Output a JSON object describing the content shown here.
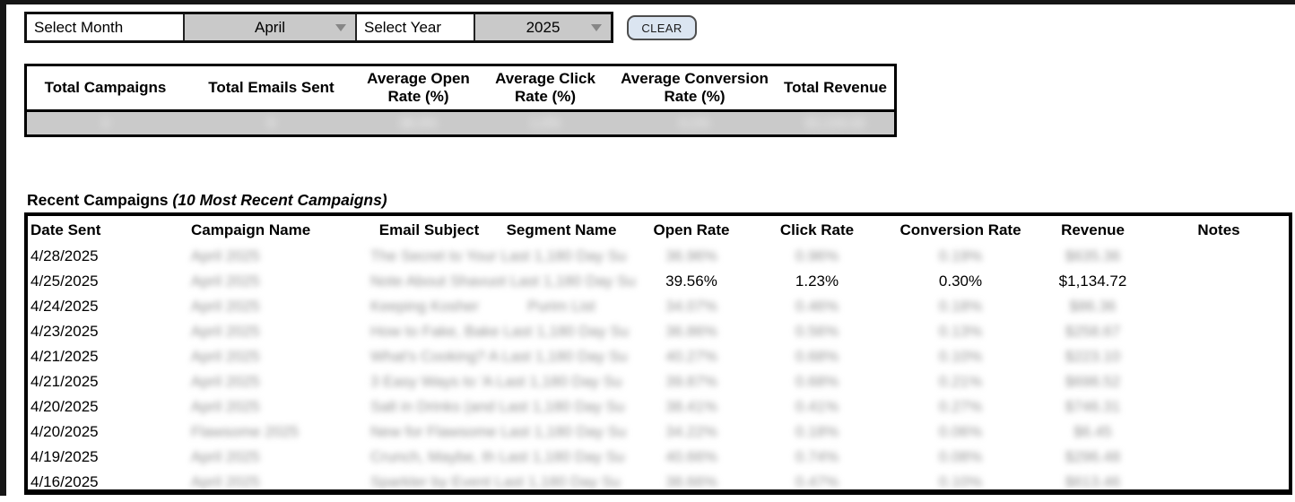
{
  "filters": {
    "month_label": "Select Month",
    "month_value": "April",
    "year_label": "Select Year",
    "year_value": "2025",
    "clear_button": "CLEAR"
  },
  "summary": {
    "headers": [
      "Total Campaigns",
      "Total Emails Sent",
      "Average Open Rate (%)",
      "Average Click Rate (%)",
      "Average Conversion Rate (%)",
      "Total Revenue"
    ],
    "row_redacted": true,
    "row": {
      "total_campaigns": "3",
      "total_emails_sent": "8",
      "avg_open_rate": "38.3%",
      "avg_click_rate": "1.2%",
      "avg_conversion_rate": "0.1%",
      "total_revenue": "$1,134.42"
    }
  },
  "recent": {
    "title": "Recent Campaigns",
    "subtitle": "(10 Most Recent Campaigns)",
    "headers": [
      "Date Sent",
      "Campaign Name",
      "Email Subject",
      "Segment Name",
      "Open Rate",
      "Click Rate",
      "Conversion Rate",
      "Revenue",
      "Notes"
    ],
    "rows": [
      {
        "date": "4/28/2025",
        "campaign": "April 2025",
        "subject": "The Secret to Your Last 1,180 Day Su",
        "segment": "",
        "open": "36.96%",
        "click": "0.96%",
        "conversion": "0.19%",
        "revenue": "$635.36",
        "notes": "",
        "redacted": true
      },
      {
        "date": "4/25/2025",
        "campaign": "April 2025",
        "subject": "Note About Shavuot Last 1,180 Day Su",
        "segment": "",
        "open": "39.56%",
        "click": "1.23%",
        "conversion": "0.30%",
        "revenue": "$1,134.72",
        "notes": "",
        "redacted": false
      },
      {
        "date": "4/24/2025",
        "campaign": "April 2025",
        "subject": "Keeping Kosher",
        "segment": "Purim List",
        "open": "34.07%",
        "click": "0.46%",
        "conversion": "0.18%",
        "revenue": "$86.36",
        "notes": "",
        "redacted": true
      },
      {
        "date": "4/23/2025",
        "campaign": "April 2025",
        "subject": "How to Fake, Bake Last 1,180 Day Su",
        "segment": "",
        "open": "36.86%",
        "click": "0.56%",
        "conversion": "0.13%",
        "revenue": "$258.67",
        "notes": "",
        "redacted": true
      },
      {
        "date": "4/21/2025",
        "campaign": "April 2025",
        "subject": "What's Cooking? A Last 1,180 Day Su",
        "segment": "",
        "open": "40.27%",
        "click": "0.68%",
        "conversion": "0.10%",
        "revenue": "$223.10",
        "notes": "",
        "redacted": true
      },
      {
        "date": "4/21/2025",
        "campaign": "April 2025",
        "subject": "3 Easy Ways to 'A Last 1,180 Day Su",
        "segment": "",
        "open": "39.87%",
        "click": "0.68%",
        "conversion": "0.21%",
        "revenue": "$698.52",
        "notes": "",
        "redacted": true
      },
      {
        "date": "4/20/2025",
        "campaign": "April 2025",
        "subject": "Salt in Drinks (and Last 1,180 Day Su",
        "segment": "",
        "open": "38.41%",
        "click": "0.41%",
        "conversion": "0.27%",
        "revenue": "$746.31",
        "notes": "",
        "redacted": true
      },
      {
        "date": "4/20/2025",
        "campaign": "Flawsome 2025",
        "subject": "New for Flawsome Last 1,180 Day Su",
        "segment": "",
        "open": "34.22%",
        "click": "0.18%",
        "conversion": "0.06%",
        "revenue": "$6.45",
        "notes": "",
        "redacted": true
      },
      {
        "date": "4/19/2025",
        "campaign": "April 2025",
        "subject": "Crunch, Maybe, th Last 1,180 Day Su",
        "segment": "",
        "open": "40.66%",
        "click": "0.74%",
        "conversion": "0.08%",
        "revenue": "$296.48",
        "notes": "",
        "redacted": true
      },
      {
        "date": "4/16/2025",
        "campaign": "April 2025",
        "subject": "Sparkler by Event Last 1,180 Day Su",
        "segment": "",
        "open": "38.66%",
        "click": "0.47%",
        "conversion": "0.10%",
        "revenue": "$613.46",
        "notes": "",
        "redacted": true
      }
    ]
  },
  "colors": {
    "dropdown_gray": "#c9c9c9",
    "summary_row_gray": "#cacaca",
    "clear_button_bg": "#dbe5f1",
    "border_black": "#000000"
  }
}
